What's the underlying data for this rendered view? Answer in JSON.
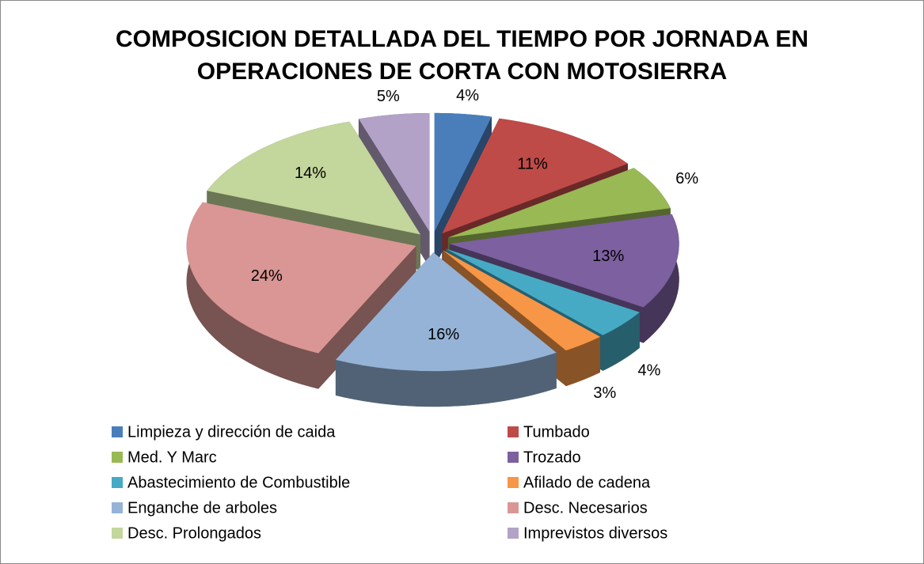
{
  "chart_data": {
    "type": "pie",
    "title": "COMPOSICION DETALLADA DEL TIEMPO POR JORNADA EN OPERACIONES DE CORTA CON MOTOSIERRA",
    "categories": [
      "Limpieza y dirección de caida",
      "Tumbado",
      "Med. Y Marc",
      "Trozado",
      "Abastecimiento de  Combustible",
      "Afilado de cadena",
      "Enganche de arboles",
      "Desc. Necesarios",
      "Desc. Prolongados",
      "Imprevistos diversos"
    ],
    "values": [
      4,
      11,
      6,
      13,
      4,
      3,
      16,
      24,
      14,
      5
    ],
    "value_labels": [
      "4%",
      "11%",
      "6%",
      "13%",
      "4%",
      "3%",
      "16%",
      "24%",
      "14%",
      "5%"
    ],
    "colors": [
      "#4a7ebb",
      "#be4b48",
      "#98b954",
      "#7d60a0",
      "#46aac5",
      "#f79646",
      "#95b3d7",
      "#d99694",
      "#c3d69b",
      "#b3a2c7"
    ],
    "legend": "bottom"
  }
}
